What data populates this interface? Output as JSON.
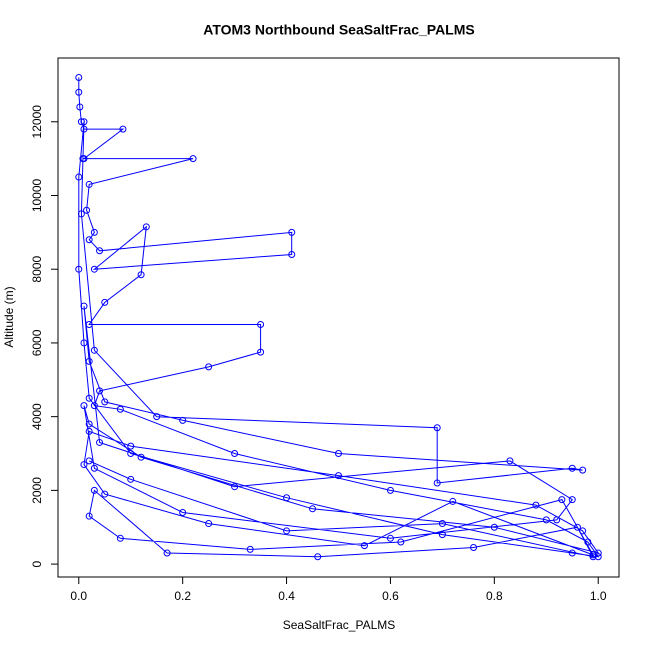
{
  "chart_data": {
    "type": "line",
    "title": "ATOM3 Northbound SeaSaltFrac_PALMS",
    "xlabel": "SeaSaltFrac_PALMS",
    "ylabel": "Altitude (m)",
    "color": "#0000ff",
    "markers": "circle",
    "xlim": [
      -0.04,
      1.04
    ],
    "ylim": [
      -350,
      13730
    ],
    "xticks": [
      {
        "value": 0,
        "label": "0.0"
      },
      0.2,
      0.4,
      0.6,
      0.8,
      {
        "value": 1,
        "label": "1.0"
      }
    ],
    "yticks": [
      0,
      2000,
      4000,
      6000,
      8000,
      10000,
      12000
    ],
    "x": [
      0.0,
      0.0,
      0.002,
      0.005,
      0.01,
      0.085,
      0.01,
      0.008,
      0.22,
      0.02,
      0.015,
      0.03,
      0.02,
      0.04,
      0.41,
      0.41,
      0.03,
      0.13,
      0.12,
      0.05,
      0.02,
      0.35,
      0.35,
      0.25,
      0.04,
      0.03,
      0.08,
      0.3,
      0.6,
      0.9,
      0.98,
      1.0,
      0.95,
      0.7,
      0.4,
      0.1,
      0.02,
      0.01,
      0.0,
      0.0,
      0.01,
      0.005,
      0.03,
      0.15,
      0.69,
      0.69,
      0.95,
      0.97,
      0.5,
      0.2,
      0.05,
      0.02,
      0.01,
      0.04,
      0.3,
      0.83,
      0.95,
      0.92,
      0.6,
      0.2,
      0.03,
      0.01,
      0.02,
      0.12,
      0.45,
      0.8,
      1.0,
      0.97,
      0.88,
      0.5,
      0.1,
      0.02,
      0.01,
      0.05,
      0.25,
      0.55,
      0.72,
      0.99,
      0.93,
      0.62,
      0.33,
      0.08,
      0.02,
      0.03,
      0.17,
      0.46,
      0.76,
      0.96,
      0.99,
      0.7,
      0.4,
      0.1,
      0.02
    ],
    "values": [
      13200,
      12800,
      12400,
      12000,
      11800,
      11800,
      11000,
      11000,
      11000,
      10300,
      9600,
      9000,
      8800,
      8500,
      9000,
      8400,
      8000,
      9150,
      7850,
      7100,
      6500,
      6500,
      5750,
      5350,
      4700,
      4300,
      4200,
      3000,
      2000,
      1200,
      600,
      200,
      300,
      800,
      1800,
      3000,
      4500,
      6000,
      8000,
      10500,
      12000,
      9500,
      5800,
      4000,
      3700,
      2200,
      2600,
      2550,
      3000,
      3900,
      4400,
      5500,
      7000,
      3300,
      2100,
      2800,
      1750,
      1200,
      700,
      1400,
      2600,
      4300,
      3800,
      2900,
      1500,
      1000,
      300,
      900,
      1600,
      2400,
      3200,
      3600,
      2700,
      1900,
      1100,
      500,
      1700,
      250,
      1750,
      600,
      400,
      700,
      1300,
      2000,
      300,
      200,
      450,
      1000,
      200,
      1100,
      900,
      2300,
      2800
    ]
  }
}
